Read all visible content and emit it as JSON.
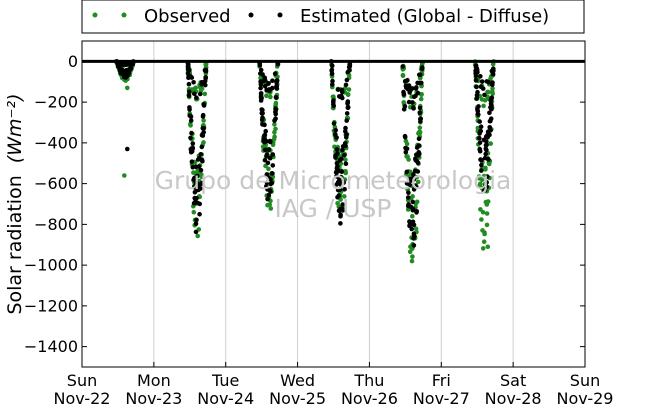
{
  "chart_data": {
    "type": "scatter",
    "ylabel": "Solar radiation",
    "ylabel_unit": "(Wm⁻²)",
    "ylim": [
      -1500,
      100
    ],
    "xlim": [
      "Nov-22",
      "Nov-29"
    ],
    "yticks": [
      0,
      -200,
      -400,
      -600,
      -800,
      -1000,
      -1200,
      -1400
    ],
    "xticks": [
      {
        "day": "Sun",
        "date": "Nov-22"
      },
      {
        "day": "Mon",
        "date": "Nov-23"
      },
      {
        "day": "Tue",
        "date": "Nov-24"
      },
      {
        "day": "Wed",
        "date": "Nov-25"
      },
      {
        "day": "Thu",
        "date": "Nov-26"
      },
      {
        "day": "Fri",
        "date": "Nov-27"
      },
      {
        "day": "Sat",
        "date": "Nov-28"
      },
      {
        "day": "Sun",
        "date": "Nov-29"
      }
    ],
    "grid": "vertical",
    "legend_placement": "top",
    "series": [
      {
        "name": "Observed",
        "color": "#228b22",
        "days": [
          {
            "date": "Nov-22",
            "peak": -100,
            "spread_days": 0.12,
            "outliers": [
              -130,
              -560
            ]
          },
          {
            "date": "Nov-23",
            "peak": -880,
            "spread_days": 0.13,
            "outliers": [
              -700
            ]
          },
          {
            "date": "Nov-24",
            "peak": -780,
            "spread_days": 0.13,
            "outliers": []
          },
          {
            "date": "Nov-25",
            "peak": -830,
            "spread_days": 0.13,
            "outliers": [
              -420
            ]
          },
          {
            "date": "Nov-26",
            "peak": -1030,
            "spread_days": 0.14,
            "outliers": [
              -910
            ]
          },
          {
            "date": "Nov-27",
            "peak": -950,
            "spread_days": 0.13,
            "outliers": [
              -910
            ]
          }
        ]
      },
      {
        "name": "Estimated (Global - Diffuse)",
        "color": "#000000",
        "days": [
          {
            "date": "Nov-22",
            "peak": -80,
            "spread_days": 0.12,
            "outliers": [
              -430
            ]
          },
          {
            "date": "Nov-23",
            "peak": -860,
            "spread_days": 0.13,
            "outliers": []
          },
          {
            "date": "Nov-24",
            "peak": -700,
            "spread_days": 0.13,
            "outliers": []
          },
          {
            "date": "Nov-25",
            "peak": -820,
            "spread_days": 0.13,
            "outliers": []
          },
          {
            "date": "Nov-26",
            "peak": -950,
            "spread_days": 0.14,
            "outliers": []
          },
          {
            "date": "Nov-27",
            "peak": -680,
            "spread_days": 0.13,
            "outliers": []
          }
        ]
      }
    ]
  },
  "legend": {
    "observed_label": "Observed",
    "estimated_label": "Estimated (Global - Diffuse)",
    "observed_color": "#228b22",
    "estimated_color": "#000000"
  },
  "watermark": {
    "line1": "Grupo de Micrometeorologia",
    "line2": "IAG / USP"
  }
}
